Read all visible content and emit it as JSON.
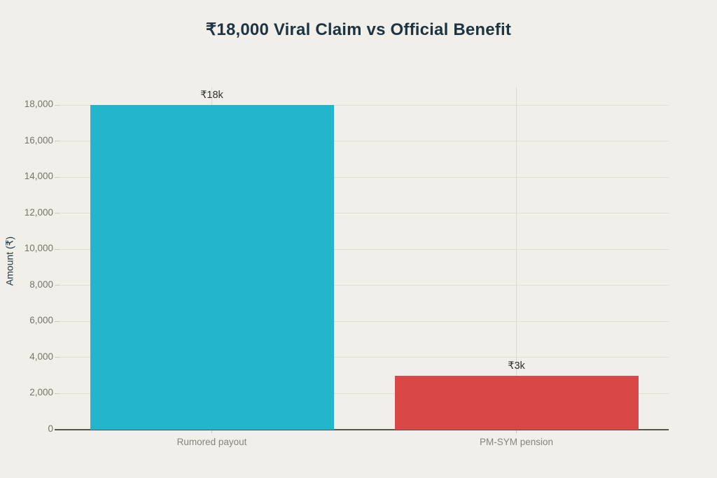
{
  "page": {
    "background_color": "#f0efe9"
  },
  "chart_data": {
    "type": "bar",
    "title": "₹18,000 Viral Claim vs Official Benefit",
    "xlabel": "",
    "ylabel": "Amount (₹)",
    "categories": [
      "Rumored payout",
      "PM-SYM pension"
    ],
    "values": [
      18000,
      3000
    ],
    "value_labels": [
      "₹18k",
      "₹3k"
    ],
    "bar_colors": [
      "#22b5cb",
      "#d94747"
    ],
    "ylim": [
      0,
      18000
    ],
    "yticks": [
      0,
      2000,
      4000,
      6000,
      8000,
      10000,
      12000,
      14000,
      16000,
      18000
    ],
    "ytick_labels": [
      "0",
      "2,000",
      "4,000",
      "6,000",
      "8,000",
      "10,000",
      "12,000",
      "14,000",
      "16,000",
      "18,000"
    ],
    "grid": true,
    "legend_position": "none",
    "colors": {
      "title": "#1e3440",
      "axis_line": "#55554e",
      "gridline": "#dedfd6",
      "ytick_label": "#75756d",
      "xtick_label": "#85857d",
      "value_label": "#2e2e2e"
    }
  }
}
